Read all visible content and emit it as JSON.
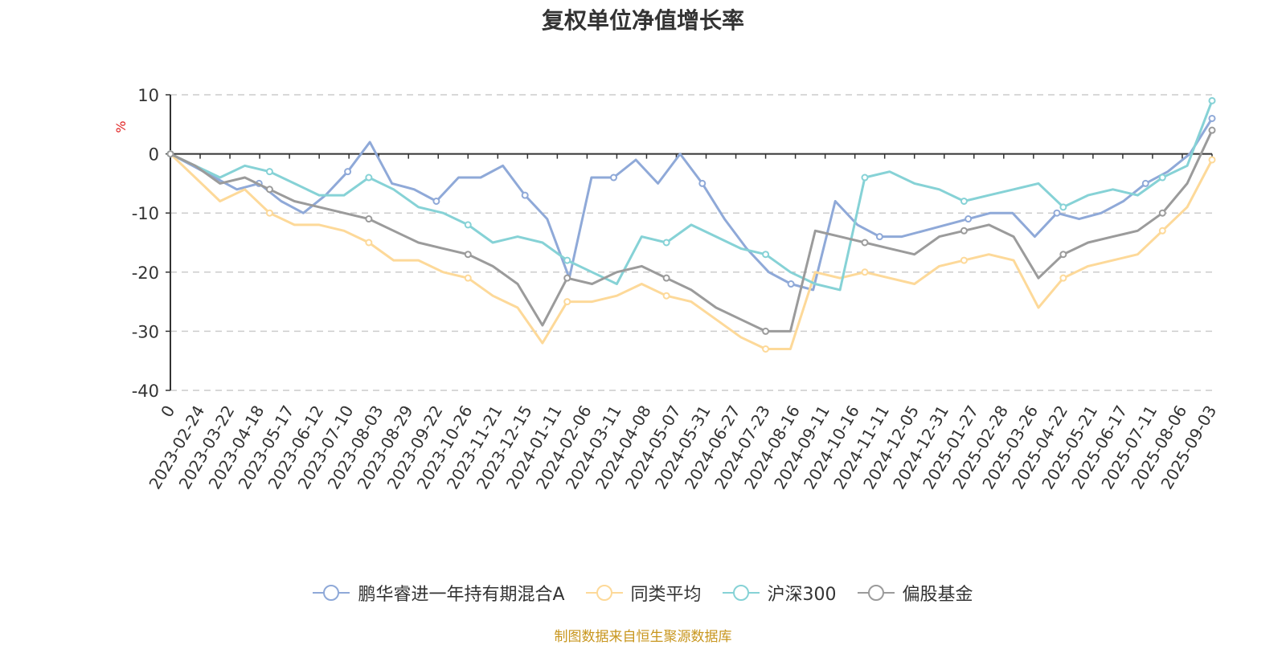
{
  "chart_data": {
    "type": "line",
    "title": "复权单位净值增长率",
    "ylabel": "%",
    "ylim": [
      -40,
      10
    ],
    "y_ticks": [
      "10",
      "0",
      "-10",
      "-20",
      "-30",
      "-40"
    ],
    "grid": true,
    "legend_position": "bottom",
    "x_ticks": [
      "0",
      "2023-02-24",
      "2023-03-22",
      "2023-04-18",
      "2023-05-17",
      "2023-06-12",
      "2023-07-10",
      "2023-08-03",
      "2023-08-29",
      "2023-09-22",
      "2023-10-26",
      "2023-11-21",
      "2023-12-15",
      "2024-01-11",
      "2024-02-06",
      "2024-03-11",
      "2024-04-08",
      "2024-05-07",
      "2024-05-31",
      "2024-06-27",
      "2024-07-23",
      "2024-08-16",
      "2024-09-11",
      "2024-10-16",
      "2024-11-11",
      "2024-12-05",
      "2024-12-31",
      "2025-01-27",
      "2025-02-28",
      "2025-03-26",
      "2025-04-22",
      "2025-05-21",
      "2025-06-17",
      "2025-07-11",
      "2025-08-06",
      "2025-09-03"
    ],
    "series": [
      {
        "name": "鹏华睿进一年持有期混合A",
        "color": "#8fa9d8",
        "values": [
          0,
          -2,
          -4,
          -6,
          -5,
          -8,
          -10,
          -7,
          -3,
          2,
          -5,
          -6,
          -8,
          -4,
          -4,
          -2,
          -7,
          -11,
          -21,
          -4,
          -4,
          -1,
          -5,
          0,
          -5,
          -11,
          -16,
          -20,
          -22,
          -23,
          -8,
          -12,
          -14,
          -14,
          -13,
          -12,
          -11,
          -10,
          -10,
          -14,
          -10,
          -11,
          -10,
          -8,
          -5,
          -3,
          0,
          6
        ]
      },
      {
        "name": "同类平均",
        "color": "#fdd999",
        "values": [
          0,
          -4,
          -8,
          -6,
          -10,
          -12,
          -12,
          -13,
          -15,
          -18,
          -18,
          -20,
          -21,
          -24,
          -26,
          -32,
          -25,
          -25,
          -24,
          -22,
          -24,
          -25,
          -28,
          -31,
          -33,
          -33,
          -20,
          -21,
          -20,
          -21,
          -22,
          -19,
          -18,
          -17,
          -18,
          -26,
          -21,
          -19,
          -18,
          -17,
          -13,
          -9,
          -1
        ]
      },
      {
        "name": "沪深300",
        "color": "#86d2d6",
        "values": [
          0,
          -2,
          -4,
          -2,
          -3,
          -5,
          -7,
          -7,
          -4,
          -6,
          -9,
          -10,
          -12,
          -15,
          -14,
          -15,
          -18,
          -20,
          -22,
          -14,
          -15,
          -12,
          -14,
          -16,
          -17,
          -20,
          -22,
          -23,
          -4,
          -3,
          -5,
          -6,
          -8,
          -7,
          -6,
          -5,
          -9,
          -7,
          -6,
          -7,
          -4,
          -2,
          9
        ]
      },
      {
        "name": "偏股基金",
        "color": "#9b9b9b",
        "values": [
          0,
          -2,
          -5,
          -4,
          -6,
          -8,
          -9,
          -10,
          -11,
          -13,
          -15,
          -16,
          -17,
          -19,
          -22,
          -29,
          -21,
          -22,
          -20,
          -19,
          -21,
          -23,
          -26,
          -28,
          -30,
          -30,
          -13,
          -14,
          -15,
          -16,
          -17,
          -14,
          -13,
          -12,
          -14,
          -21,
          -17,
          -15,
          -14,
          -13,
          -10,
          -5,
          4
        ]
      }
    ]
  },
  "source_note": "制图数据来自恒生聚源数据库"
}
